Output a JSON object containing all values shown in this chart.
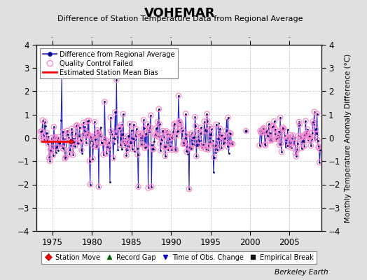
{
  "title": "VOHEMAR",
  "subtitle": "Difference of Station Temperature Data from Regional Average",
  "ylabel": "Monthly Temperature Anomaly Difference (°C)",
  "credit": "Berkeley Earth",
  "xlim": [
    1973.0,
    2009.0
  ],
  "ylim": [
    -4,
    4
  ],
  "yticks": [
    -4,
    -3,
    -2,
    -1,
    0,
    1,
    2,
    3,
    4
  ],
  "xticks": [
    1975,
    1980,
    1985,
    1990,
    1995,
    2000,
    2005
  ],
  "background_color": "#e0e0e0",
  "plot_bg_color": "#ffffff",
  "grid_color": "#c8c8c8",
  "line_color": "#2222cc",
  "dot_color": "#000066",
  "qc_color": "#ff88cc",
  "bias_color": "#ff0000",
  "seed": 42,
  "period1_start": 1973.5,
  "period1_end": 1997.8,
  "period2_start": 2001.2,
  "period2_end": 2008.9,
  "gap_x": 1999.5,
  "gap_y": 0.3,
  "station_move_x": 1977.3,
  "station_move_y": -0.15,
  "bias_x_start": 1973.5,
  "bias_x_end": 1977.3,
  "bias_y": -0.15
}
